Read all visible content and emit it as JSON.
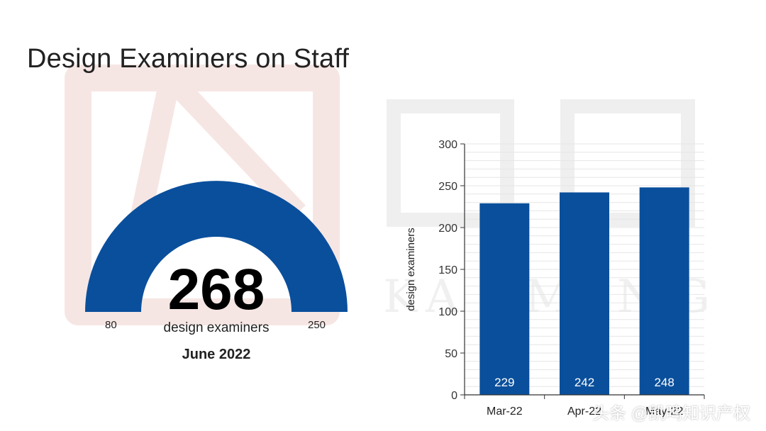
{
  "title": "Design Examiners on Staff",
  "colors": {
    "primary": "#0a4f9c",
    "bar_label": "#ffffff",
    "grid": "#e6e6e6"
  },
  "gauge": {
    "value": "268",
    "unit": "design examiners",
    "min": "80",
    "max": "250",
    "date": "June 2022"
  },
  "chart_data": {
    "type": "bar",
    "categories": [
      "Mar-22",
      "Apr-22",
      "May-22"
    ],
    "values": [
      229,
      242,
      248
    ],
    "ylabel": "design examiners",
    "ylim": [
      0,
      300
    ],
    "yticks": [
      0,
      50,
      100,
      150,
      200,
      250,
      300
    ],
    "grid": true
  },
  "footer": {
    "text": "头条 @凯鸣知识产权"
  }
}
